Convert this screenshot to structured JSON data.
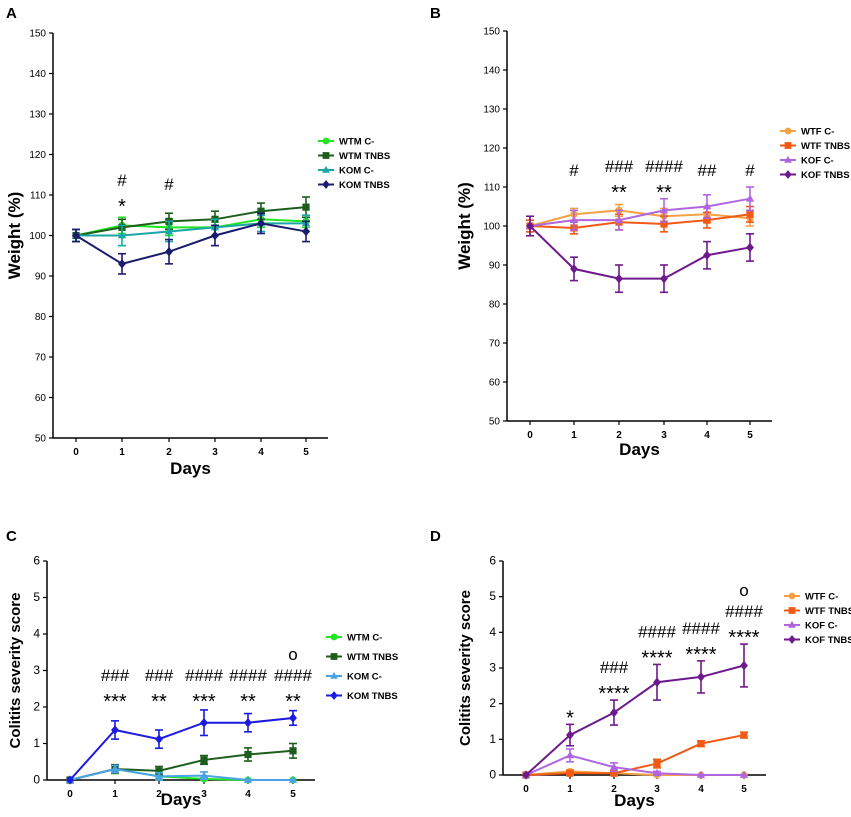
{
  "colors": {
    "wtm_cneg": "#22e622",
    "wtm_tnbs": "#1d5e1d",
    "kom_cneg_a": "#1aa6a6",
    "kom_tnbs_a": "#1c1c6e",
    "kom_cneg_c": "#4aa3e6",
    "kom_tnbs_c": "#1a1ae0",
    "wtf_cneg": "#f5a142",
    "wtf_tnbs": "#f05a14",
    "kof_cneg": "#b066e0",
    "kof_tnbs": "#6e1a8c"
  },
  "chart_data": [
    {
      "panel": "A",
      "type": "line",
      "xlabel": "Days",
      "ylabel": "Weight (%)",
      "x": [
        0,
        1,
        2,
        3,
        4,
        5
      ],
      "xticks": [
        "0",
        "1",
        "2",
        "3",
        "4",
        "5"
      ],
      "ylim": [
        50,
        150
      ],
      "yticks": [
        "50",
        "60",
        "70",
        "80",
        "90",
        "100",
        "110",
        "120",
        "130",
        "140",
        "150"
      ],
      "legend_position": "right",
      "series": [
        {
          "name": "WTM C-",
          "marker": "circle",
          "color": "#22e622",
          "values": [
            100,
            102.5,
            102,
            102,
            104,
            103.5
          ],
          "err": [
            1.5,
            2,
            2,
            2,
            2,
            1.5
          ]
        },
        {
          "name": "WTM TNBS",
          "marker": "square",
          "color": "#1d5e1d",
          "values": [
            100,
            102,
            103.5,
            104,
            106,
            107
          ],
          "err": [
            1.5,
            2,
            2,
            2,
            2,
            2.5
          ]
        },
        {
          "name": "KOM C-",
          "marker": "triangle",
          "color": "#1aa6a6",
          "values": [
            100,
            100,
            101,
            102,
            103,
            103
          ],
          "err": [
            1.5,
            2.5,
            2.5,
            2,
            2,
            2
          ]
        },
        {
          "name": "KOM TNBS",
          "marker": "diamond",
          "color": "#1c1c6e",
          "values": [
            100,
            93,
            96,
            100,
            103,
            101
          ],
          "err": [
            1.5,
            2.5,
            3,
            2.5,
            2.5,
            2.5
          ]
        }
      ],
      "annotations": [
        {
          "x": 1,
          "lines": [
            "#",
            "*"
          ]
        },
        {
          "x": 2,
          "lines": [
            "#"
          ]
        }
      ]
    },
    {
      "panel": "B",
      "type": "line",
      "xlabel": "Days",
      "ylabel": "Weight (%)",
      "x": [
        0,
        1,
        2,
        3,
        4,
        5
      ],
      "xticks": [
        "0",
        "1",
        "2",
        "3",
        "4",
        "5"
      ],
      "ylim": [
        50,
        150
      ],
      "yticks": [
        "50",
        "60",
        "70",
        "80",
        "90",
        "100",
        "110",
        "120",
        "130",
        "140",
        "150"
      ],
      "legend_position": "right",
      "series": [
        {
          "name": "WTF C-",
          "marker": "circle",
          "color": "#f5a142",
          "values": [
            100,
            103,
            104,
            102.5,
            103,
            102
          ],
          "err": [
            1.5,
            1.5,
            1.5,
            2,
            2,
            2
          ]
        },
        {
          "name": "WTF TNBS",
          "marker": "square",
          "color": "#f05a14",
          "values": [
            100,
            99.5,
            101,
            100.5,
            101.5,
            103
          ],
          "err": [
            1.5,
            1.5,
            2,
            2,
            2,
            2
          ]
        },
        {
          "name": "KOF C-",
          "marker": "triangle",
          "color": "#b066e0",
          "values": [
            100,
            101.5,
            101.5,
            104,
            105,
            107
          ],
          "err": [
            2.5,
            2.5,
            2.5,
            3,
            3,
            3
          ]
        },
        {
          "name": "KOF TNBS",
          "marker": "diamond",
          "color": "#6e1a8c",
          "values": [
            100,
            89,
            86.5,
            86.5,
            92.5,
            94.5
          ],
          "err": [
            2.5,
            3,
            3.5,
            3.5,
            3.5,
            3.5
          ]
        }
      ],
      "annotations": [
        {
          "x": 1,
          "lines": [
            "#"
          ]
        },
        {
          "x": 2,
          "lines": [
            "###",
            "**"
          ]
        },
        {
          "x": 3,
          "lines": [
            "####",
            "**"
          ]
        },
        {
          "x": 4,
          "lines": [
            "##"
          ]
        },
        {
          "x": 5,
          "lines": [
            "#"
          ]
        }
      ]
    },
    {
      "panel": "C",
      "type": "line",
      "xlabel": "Days",
      "ylabel": "Colitits severity score",
      "x": [
        0,
        1,
        2,
        3,
        4,
        5
      ],
      "xticks": [
        "0",
        "1",
        "2",
        "3",
        "4",
        "5"
      ],
      "ylim": [
        0,
        6
      ],
      "yticks": [
        "0",
        "1",
        "2",
        "3",
        "4",
        "5",
        "6"
      ],
      "legend_position": "right",
      "series": [
        {
          "name": "WTM C-",
          "marker": "circle",
          "color": "#22e622",
          "values": [
            0,
            0.3,
            0.1,
            0.03,
            0,
            0
          ],
          "err": [
            0,
            0.1,
            0.1,
            0.03,
            0,
            0
          ]
        },
        {
          "name": "WTM TNBS",
          "marker": "square",
          "color": "#1d5e1d",
          "values": [
            0,
            0.3,
            0.25,
            0.55,
            0.7,
            0.8
          ],
          "err": [
            0,
            0.12,
            0.12,
            0.12,
            0.18,
            0.2
          ]
        },
        {
          "name": "KOM C-",
          "marker": "triangle",
          "color": "#4aa3e6",
          "values": [
            0,
            0.3,
            0.1,
            0.12,
            0,
            0
          ],
          "err": [
            0,
            0.1,
            0.1,
            0.1,
            0,
            0
          ]
        },
        {
          "name": "KOM TNBS",
          "marker": "diamond",
          "color": "#1a1ae0",
          "values": [
            0,
            1.37,
            1.12,
            1.57,
            1.57,
            1.7
          ],
          "err": [
            0,
            0.25,
            0.25,
            0.35,
            0.25,
            0.2
          ]
        }
      ],
      "annotations": [
        {
          "x": 1,
          "lines": [
            "###",
            "***"
          ]
        },
        {
          "x": 2,
          "lines": [
            "###",
            "**"
          ]
        },
        {
          "x": 3,
          "lines": [
            "####",
            "***"
          ]
        },
        {
          "x": 4,
          "lines": [
            "####",
            "**"
          ]
        },
        {
          "x": 5,
          "lines": [
            "o",
            "####",
            "**"
          ]
        }
      ]
    },
    {
      "panel": "D",
      "type": "line",
      "xlabel": "Days",
      "ylabel": "Colitits severity score",
      "x": [
        0,
        1,
        2,
        3,
        4,
        5
      ],
      "xticks": [
        "0",
        "1",
        "2",
        "3",
        "4",
        "5"
      ],
      "ylim": [
        0,
        6
      ],
      "yticks": [
        "0",
        "1",
        "2",
        "3",
        "4",
        "5",
        "6"
      ],
      "legend_position": "right",
      "series": [
        {
          "name": "WTF C-",
          "marker": "circle",
          "color": "#f5a142",
          "values": [
            0,
            0.1,
            0.05,
            0,
            0,
            0
          ],
          "err": [
            0,
            0.05,
            0.05,
            0,
            0,
            0
          ]
        },
        {
          "name": "WTF TNBS",
          "marker": "square",
          "color": "#f05a14",
          "values": [
            0,
            0.05,
            0.05,
            0.32,
            0.88,
            1.12
          ],
          "err": [
            0,
            0.05,
            0.05,
            0.12,
            0.08,
            0.08
          ]
        },
        {
          "name": "KOF C-",
          "marker": "triangle",
          "color": "#b066e0",
          "values": [
            0,
            0.55,
            0.22,
            0.05,
            0,
            0
          ],
          "err": [
            0,
            0.18,
            0.12,
            0.05,
            0,
            0
          ]
        },
        {
          "name": "KOF TNBS",
          "marker": "diamond",
          "color": "#6e1a8c",
          "values": [
            0,
            1.12,
            1.75,
            2.6,
            2.75,
            3.07
          ],
          "err": [
            0,
            0.3,
            0.35,
            0.5,
            0.45,
            0.6
          ]
        }
      ],
      "annotations": [
        {
          "x": 1,
          "lines": [
            "*"
          ]
        },
        {
          "x": 2,
          "lines": [
            "###",
            "****"
          ]
        },
        {
          "x": 3,
          "lines": [
            "####",
            "****"
          ]
        },
        {
          "x": 4,
          "lines": [
            "####",
            "****"
          ]
        },
        {
          "x": 5,
          "lines": [
            "o",
            "####",
            "****"
          ]
        }
      ]
    }
  ]
}
